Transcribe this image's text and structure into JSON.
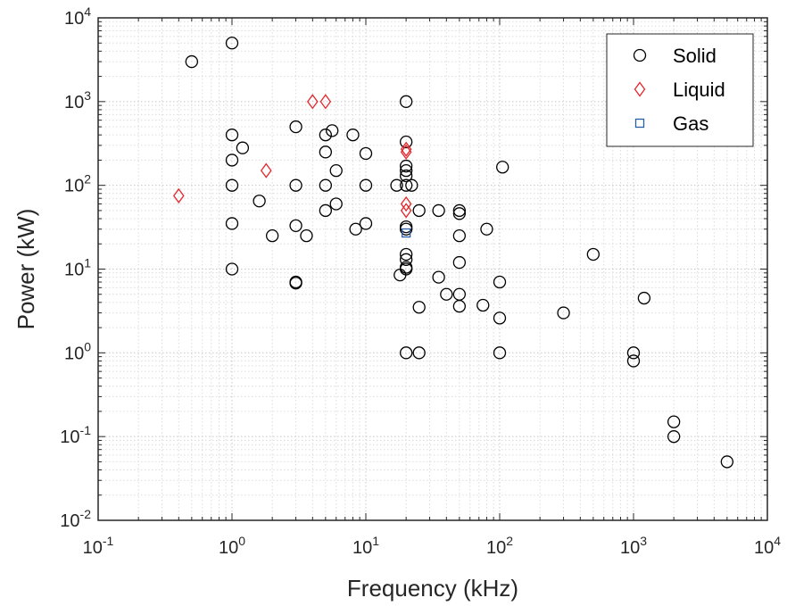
{
  "chart_data": {
    "type": "scatter",
    "title": "",
    "xlabel": "Frequency (kHz)",
    "ylabel": "Power (kW)",
    "xscale": "log",
    "yscale": "log",
    "xlim": [
      0.1,
      10000
    ],
    "ylim": [
      0.01,
      10000
    ],
    "grid": "major and minor, dotted",
    "box": true,
    "x_ticks": [
      {
        "base": "10",
        "exp": "-1"
      },
      {
        "base": "10",
        "exp": "0"
      },
      {
        "base": "10",
        "exp": "1"
      },
      {
        "base": "10",
        "exp": "2"
      },
      {
        "base": "10",
        "exp": "3"
      },
      {
        "base": "10",
        "exp": "4"
      }
    ],
    "y_ticks": [
      {
        "base": "10",
        "exp": "-2"
      },
      {
        "base": "10",
        "exp": "-1"
      },
      {
        "base": "10",
        "exp": "0"
      },
      {
        "base": "10",
        "exp": "1"
      },
      {
        "base": "10",
        "exp": "2"
      },
      {
        "base": "10",
        "exp": "3"
      },
      {
        "base": "10",
        "exp": "4"
      }
    ],
    "legend": {
      "position": "top-right",
      "entries": [
        "Solid",
        "Liquid",
        "Gas"
      ]
    },
    "series": [
      {
        "name": "Solid",
        "marker": "circle",
        "color": "#000000",
        "points": [
          [
            0.5,
            3000
          ],
          [
            1,
            5000
          ],
          [
            1,
            400
          ],
          [
            1,
            200
          ],
          [
            1,
            100
          ],
          [
            1,
            35
          ],
          [
            1,
            10
          ],
          [
            1.2,
            280
          ],
          [
            1.6,
            65
          ],
          [
            2,
            25
          ],
          [
            3,
            500
          ],
          [
            3,
            100
          ],
          [
            3,
            33
          ],
          [
            3,
            7
          ],
          [
            3,
            6.8
          ],
          [
            3.6,
            25
          ],
          [
            5,
            400
          ],
          [
            5,
            250
          ],
          [
            5,
            100
          ],
          [
            5,
            50
          ],
          [
            5.6,
            450
          ],
          [
            6,
            150
          ],
          [
            6,
            60
          ],
          [
            8,
            400
          ],
          [
            8.4,
            30
          ],
          [
            10,
            240
          ],
          [
            10,
            100
          ],
          [
            10,
            35
          ],
          [
            17,
            100
          ],
          [
            18,
            8.5
          ],
          [
            20,
            1000
          ],
          [
            20,
            330
          ],
          [
            20,
            170
          ],
          [
            20,
            150
          ],
          [
            20,
            130
          ],
          [
            20,
            100
          ],
          [
            20,
            32
          ],
          [
            20,
            30
          ],
          [
            20,
            15
          ],
          [
            20,
            13
          ],
          [
            20,
            10.5
          ],
          [
            20,
            10
          ],
          [
            20,
            1
          ],
          [
            22,
            100
          ],
          [
            25,
            50
          ],
          [
            25,
            3.5
          ],
          [
            25,
            1
          ],
          [
            35,
            50
          ],
          [
            35,
            8
          ],
          [
            40,
            5
          ],
          [
            50,
            50
          ],
          [
            50,
            46
          ],
          [
            50,
            25
          ],
          [
            50,
            12
          ],
          [
            50,
            5
          ],
          [
            50,
            3.6
          ],
          [
            75,
            3.7
          ],
          [
            80,
            30
          ],
          [
            100,
            7
          ],
          [
            100,
            2.6
          ],
          [
            100,
            1
          ],
          [
            105,
            165
          ],
          [
            300,
            3
          ],
          [
            500,
            15
          ],
          [
            1000,
            1
          ],
          [
            1000,
            0.8
          ],
          [
            1200,
            4.5
          ],
          [
            2000,
            0.15
          ],
          [
            2000,
            0.1
          ],
          [
            5000,
            0.05
          ]
        ]
      },
      {
        "name": "Liquid",
        "marker": "diamond",
        "color": "#e3262b",
        "points": [
          [
            0.4,
            75
          ],
          [
            1.8,
            150
          ],
          [
            4,
            1000
          ],
          [
            5,
            1000
          ],
          [
            20,
            270
          ],
          [
            20,
            250
          ],
          [
            20,
            60
          ],
          [
            20,
            50
          ]
        ]
      },
      {
        "name": "Gas",
        "marker": "square",
        "color": "#2a5fa6",
        "points": [
          [
            20,
            27
          ]
        ]
      }
    ]
  }
}
